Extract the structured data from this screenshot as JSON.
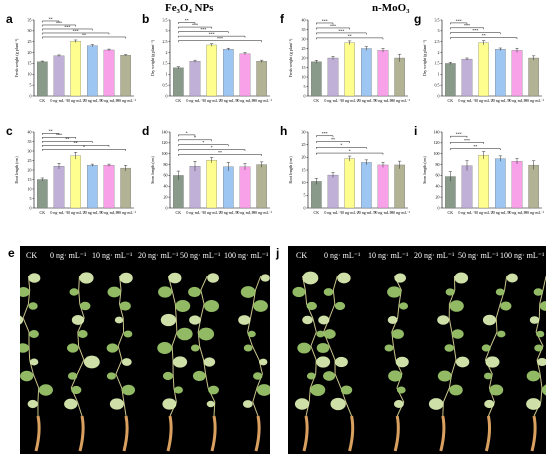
{
  "headers": {
    "left": "Fe₃O₄ NPs",
    "right": "n-MoO₃"
  },
  "colors": [
    "#8a9a8a",
    "#c0b0d8",
    "#fefe8e",
    "#9ec6f2",
    "#f8a0e8",
    "#b2b295"
  ],
  "chart_data": [
    {
      "letter": "a",
      "type": "bar",
      "ylabel": "Fresh weight (g plant⁻¹)",
      "categories": [
        "CK",
        "0 ng·mL⁻¹",
        "10 ng·mL⁻¹",
        "20 ng·mL⁻¹",
        "50 ng·mL⁻¹",
        "100 ng·mL⁻¹"
      ],
      "ylim": [
        0,
        35
      ],
      "yticks": [
        0,
        5,
        10,
        15,
        20,
        25,
        30,
        35
      ],
      "values": [
        15.8,
        18.5,
        25.2,
        23.2,
        21.2,
        18.8
      ],
      "errors": [
        0.3,
        0.4,
        0.6,
        0.5,
        0.4,
        0.3
      ],
      "sig": [
        "**",
        "***",
        "***",
        "***",
        "**"
      ]
    },
    {
      "letter": "b",
      "type": "bar",
      "ylabel": "Dry weight (g plant⁻¹)",
      "categories": [
        "CK",
        "0 ng·mL⁻¹",
        "10 ng·mL⁻¹",
        "20 ng·mL⁻¹",
        "50 ng·mL⁻¹",
        "100 ng·mL⁻¹"
      ],
      "ylim": [
        0,
        3.5
      ],
      "yticks": [
        0,
        0.5,
        1,
        1.5,
        2,
        2.5,
        3,
        3.5
      ],
      "values": [
        1.3,
        1.6,
        2.35,
        2.15,
        1.95,
        1.6
      ],
      "errors": [
        0.05,
        0.05,
        0.06,
        0.05,
        0.05,
        0.05
      ],
      "sig": [
        "**",
        "***",
        "***",
        "***",
        "***"
      ]
    },
    {
      "letter": "c",
      "type": "bar",
      "ylabel": "Root length (cm)",
      "categories": [
        "CK",
        "0 ng·mL⁻¹",
        "10 ng·mL⁻¹",
        "20 ng·mL⁻¹",
        "50 ng·mL⁻¹",
        "100 ng·mL⁻¹"
      ],
      "ylim": [
        0,
        40
      ],
      "yticks": [
        0,
        5,
        10,
        15,
        20,
        25,
        30,
        35,
        40
      ],
      "values": [
        15,
        22,
        27.5,
        22.5,
        22.5,
        21
      ],
      "errors": [
        0.8,
        1.5,
        1.8,
        0.6,
        0.6,
        1.5
      ],
      "sig": [
        "**",
        "***",
        "**",
        "**",
        "*"
      ]
    },
    {
      "letter": "d",
      "type": "bar",
      "ylabel": "Stem length (cm)",
      "categories": [
        "CK",
        "0 ng·mL⁻¹",
        "10 ng·mL⁻¹",
        "20 ng·mL⁻¹",
        "50 ng·mL⁻¹",
        "100 ng·mL⁻¹"
      ],
      "ylim": [
        0,
        140
      ],
      "yticks": [
        0,
        20,
        40,
        60,
        80,
        100,
        120,
        140
      ],
      "values": [
        60,
        77,
        88,
        76,
        76,
        80
      ],
      "errors": [
        8,
        9,
        5,
        8,
        6,
        5
      ],
      "sig": [
        "*",
        "*",
        "*",
        "*",
        "**"
      ]
    },
    {
      "letter": "f",
      "type": "bar",
      "ylabel": "Fresh weight (g plant⁻¹)",
      "categories": [
        "CK",
        "0 ng·mL⁻¹",
        "10 ng·mL⁻¹",
        "20 ng·mL⁻¹",
        "50 ng·mL⁻¹",
        "100 ng·mL⁻¹"
      ],
      "ylim": [
        0,
        40
      ],
      "yticks": [
        0,
        5,
        10,
        15,
        20,
        25,
        30,
        35,
        40
      ],
      "values": [
        18,
        20,
        28,
        25,
        24,
        20
      ],
      "errors": [
        0.8,
        0.8,
        1,
        1,
        1,
        2
      ],
      "sig": [
        "***",
        "***",
        "***",
        "**"
      ]
    },
    {
      "letter": "g",
      "type": "bar",
      "ylabel": "Dry weight (g plant⁻¹)",
      "categories": [
        "CK",
        "0 ng·mL⁻¹",
        "10 ng·mL⁻¹",
        "20 ng·mL⁻¹",
        "50 ng·mL⁻¹",
        "100 ng·mL⁻¹"
      ],
      "ylim": [
        0,
        3.5
      ],
      "yticks": [
        0,
        0.5,
        1,
        1.5,
        2,
        2.5,
        3,
        3.5
      ],
      "values": [
        1.5,
        1.7,
        2.45,
        2.15,
        2.1,
        1.75
      ],
      "errors": [
        0.05,
        0.05,
        0.1,
        0.06,
        0.1,
        0.1
      ],
      "sig": [
        "***",
        "***",
        "***",
        "**"
      ]
    },
    {
      "letter": "h",
      "type": "bar",
      "ylabel": "Root length (cm)",
      "categories": [
        "CK",
        "0 ng·mL⁻¹",
        "10 ng·mL⁻¹",
        "20 ng·mL⁻¹",
        "50 ng·mL⁻¹",
        "100 ng·mL⁻¹"
      ],
      "ylim": [
        0,
        30
      ],
      "yticks": [
        0,
        5,
        10,
        15,
        20,
        25,
        30
      ],
      "values": [
        10.5,
        13,
        19.5,
        18,
        17,
        17
      ],
      "errors": [
        1.2,
        1,
        1,
        1,
        1,
        1.5
      ],
      "sig": [
        "***",
        "**",
        "*",
        "*"
      ]
    },
    {
      "letter": "i",
      "type": "bar",
      "ylabel": "Stem length (cm)",
      "categories": [
        "CK",
        "0 ng·mL⁻¹",
        "10 ng·mL⁻¹",
        "20 ng·mL⁻¹",
        "50 ng·mL⁻¹",
        "100 ng·mL⁻¹"
      ],
      "ylim": [
        0,
        140
      ],
      "yticks": [
        0,
        20,
        40,
        60,
        80,
        100,
        120,
        140
      ],
      "values": [
        58,
        78,
        97,
        91,
        86,
        79
      ],
      "errors": [
        9,
        9,
        7,
        5,
        5,
        8
      ],
      "sig": [
        "***",
        "***",
        "**"
      ]
    }
  ],
  "photos": [
    {
      "letter": "e",
      "labels": [
        "CK",
        "0 ng· mL⁻¹",
        "10 ng· mL⁻¹",
        "20 ng· mL⁻¹",
        "50 ng· mL⁻¹",
        "100 ng· mL⁻¹"
      ]
    },
    {
      "letter": "j",
      "labels": [
        "CK",
        "0 ng· mL⁻¹",
        "10 ng· mL⁻¹",
        "20 ng· mL⁻¹",
        "50 ng· mL⁻¹",
        "100 ng· mL⁻¹"
      ]
    }
  ]
}
